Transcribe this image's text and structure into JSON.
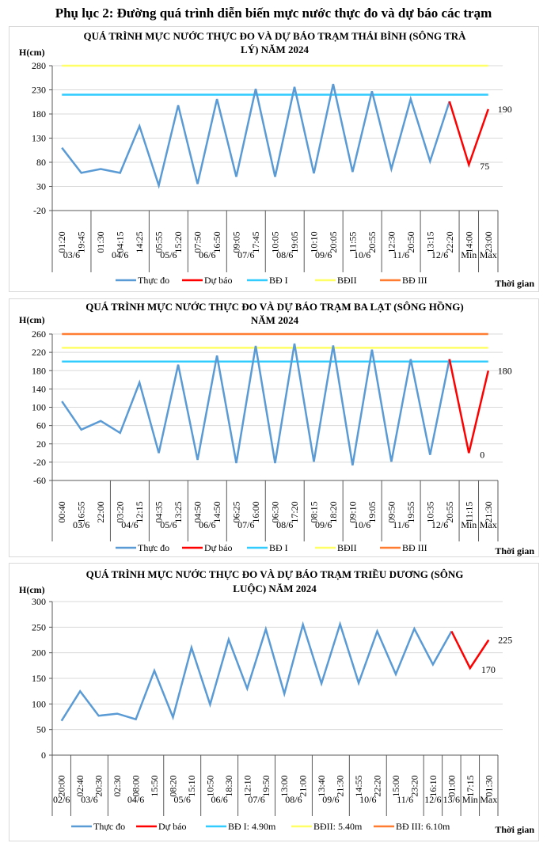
{
  "page_title": "Phụ lục 2: Đường quá trình diễn biến mực nước thực đo và dự báo các trạm",
  "colors": {
    "observed": "#5b9bd5",
    "forecast": "#ff0000",
    "bd1": "#33ccff",
    "bd2": "#ffff66",
    "bd3": "#ff7c30",
    "grid": "#d9d9d9",
    "axis": "#595959"
  },
  "chart_data": [
    {
      "type": "line",
      "title_lines": [
        "QUÁ TRÌNH MỰC NƯỚC THỰC ĐO VÀ DỰ BÁO TRẠM THÁI BÌNH (SÔNG TRÀ",
        "LÝ) NĂM 2024"
      ],
      "ylabel": "H(cm)",
      "xlabel": "Thời gian",
      "ylim": [
        -20,
        280
      ],
      "yticks": [
        -20,
        30,
        80,
        130,
        180,
        230,
        280
      ],
      "grid": true,
      "x": [
        "01:20",
        "19:45",
        "01:30",
        "04:15",
        "14:25",
        "05:55",
        "15:20",
        "07:50",
        "16:50",
        "09:05",
        "17:45",
        "10:05",
        "19:05",
        "10:10",
        "20:05",
        "11:55",
        "20:55",
        "12:30",
        "20:50",
        "13:15",
        "22:20",
        "14:00",
        "23:00"
      ],
      "groups": [
        {
          "label": "03/6",
          "count": 2
        },
        {
          "label": "04/6",
          "count": 3
        },
        {
          "label": "05/6",
          "count": 2
        },
        {
          "label": "06/6",
          "count": 2
        },
        {
          "label": "07/6",
          "count": 2
        },
        {
          "label": "08/6",
          "count": 2
        },
        {
          "label": "09/6",
          "count": 2
        },
        {
          "label": "10/6",
          "count": 2
        },
        {
          "label": "11/6",
          "count": 2
        },
        {
          "label": "12/6",
          "count": 2
        },
        {
          "label": "Min",
          "count": 1
        },
        {
          "label": "Max",
          "count": 1
        }
      ],
      "series": [
        {
          "name": "Thực đo",
          "color_key": "observed",
          "start_index": 0,
          "values": [
            110,
            58,
            66,
            58,
            155,
            32,
            198,
            35,
            211,
            50,
            232,
            50,
            236,
            57,
            242,
            60,
            227,
            66,
            211,
            82,
            206
          ]
        },
        {
          "name": "Dự báo",
          "color_key": "forecast",
          "start_index": 20,
          "values": [
            206,
            75,
            190
          ]
        },
        {
          "name": "BĐ I",
          "color_key": "bd1",
          "constant": 220
        },
        {
          "name": "BĐII",
          "color_key": "bd2",
          "constant": 280
        },
        {
          "name": "BĐ III",
          "color_key": "bd3",
          "constant": null
        }
      ],
      "data_labels": [
        {
          "index": 21,
          "value": 75,
          "text": "75"
        },
        {
          "index": 22,
          "value": 190,
          "text": "190"
        }
      ],
      "legend": [
        "Thực đo",
        "Dự báo",
        "BĐ I",
        "BĐII",
        "BĐ III"
      ],
      "legend_position": "bottom"
    },
    {
      "type": "line",
      "title_lines": [
        "QUÁ TRÌNH MỰC NƯỚC THỰC ĐO VÀ DỰ BÁO TRẠM BA LẠT (SÔNG HỒNG)",
        "NĂM 2024"
      ],
      "ylabel": "H(cm)",
      "xlabel": "Thời gian",
      "ylim": [
        -60,
        260
      ],
      "yticks": [
        -60,
        -20,
        20,
        60,
        100,
        140,
        180,
        220,
        260
      ],
      "grid": true,
      "x": [
        "00:40",
        "16:55",
        "22:00",
        "03:20",
        "12:15",
        "04:35",
        "13:25",
        "04:50",
        "14:50",
        "06:25",
        "16:00",
        "06:30",
        "17:20",
        "08:15",
        "18:20",
        "09:10",
        "19:05",
        "09:50",
        "19:55",
        "10:35",
        "20:55",
        "11:15",
        "21:30"
      ],
      "groups": [
        {
          "label": "03/6",
          "count": 3
        },
        {
          "label": "04/6",
          "count": 2
        },
        {
          "label": "05/6",
          "count": 2
        },
        {
          "label": "06/6",
          "count": 2
        },
        {
          "label": "07/6",
          "count": 2
        },
        {
          "label": "08/6",
          "count": 2
        },
        {
          "label": "09/6",
          "count": 2
        },
        {
          "label": "10/6",
          "count": 2
        },
        {
          "label": "11/6",
          "count": 2
        },
        {
          "label": "12/6",
          "count": 2
        },
        {
          "label": "Min",
          "count": 1
        },
        {
          "label": "Max",
          "count": 1
        }
      ],
      "series": [
        {
          "name": "Thực đo",
          "color_key": "observed",
          "start_index": 0,
          "values": [
            113,
            51,
            70,
            44,
            154,
            0,
            193,
            -15,
            213,
            -22,
            234,
            -22,
            239,
            -19,
            235,
            -27,
            226,
            -19,
            205,
            -4,
            205
          ]
        },
        {
          "name": "Dự báo",
          "color_key": "forecast",
          "start_index": 20,
          "values": [
            205,
            0,
            180
          ]
        },
        {
          "name": "BĐ I",
          "color_key": "bd1",
          "constant": 200
        },
        {
          "name": "BĐII",
          "color_key": "bd2",
          "constant": 230
        },
        {
          "name": "BĐ III",
          "color_key": "bd3",
          "constant": 260
        }
      ],
      "data_labels": [
        {
          "index": 21,
          "value": 0,
          "text": "0"
        },
        {
          "index": 22,
          "value": 180,
          "text": "180"
        }
      ],
      "legend": [
        "Thực đo",
        "Dự báo",
        "BĐ I",
        "BĐII",
        "BĐ III"
      ],
      "legend_position": "bottom"
    },
    {
      "type": "line",
      "title_lines": [
        "QUÁ TRÌNH MỰC NƯỚC THỰC ĐO VÀ DỰ BÁO TRẠM TRIỀU DƯƠNG (SÔNG",
        "LUỘC) NĂM 2024"
      ],
      "ylabel": "H(cm)",
      "xlabel": "Thời gian",
      "ylim": [
        0,
        300
      ],
      "yticks": [
        0,
        50,
        100,
        150,
        200,
        250,
        300
      ],
      "grid": true,
      "x": [
        "20:00",
        "02:40",
        "20:30",
        "02:30",
        "08:00",
        "15:50",
        "08:20",
        "15:10",
        "10:50",
        "18:30",
        "12:10",
        "19:50",
        "13:00",
        "21:00",
        "13:40",
        "21:30",
        "14:55",
        "22:20",
        "15:00",
        "23:20",
        "16:10",
        "01:00",
        "17:15",
        "01:30"
      ],
      "groups": [
        {
          "label": "02/6",
          "count": 1
        },
        {
          "label": "03/6",
          "count": 2
        },
        {
          "label": "04/6",
          "count": 3
        },
        {
          "label": "05/6",
          "count": 2
        },
        {
          "label": "06/6",
          "count": 2
        },
        {
          "label": "07/6",
          "count": 2
        },
        {
          "label": "08/6",
          "count": 2
        },
        {
          "label": "09/6",
          "count": 2
        },
        {
          "label": "10/6",
          "count": 2
        },
        {
          "label": "11/6",
          "count": 2
        },
        {
          "label": "12/6",
          "count": 1
        },
        {
          "label": "13/6",
          "count": 1
        },
        {
          "label": "Min",
          "count": 1
        },
        {
          "label": "Max",
          "count": 1
        }
      ],
      "series": [
        {
          "name": "Thực đo",
          "color_key": "observed",
          "start_index": 0,
          "values": [
            67,
            125,
            77,
            81,
            70,
            165,
            74,
            210,
            99,
            226,
            130,
            246,
            120,
            255,
            140,
            256,
            141,
            242,
            158,
            247,
            177,
            242
          ]
        },
        {
          "name": "Dự báo",
          "color_key": "forecast",
          "start_index": 21,
          "values": [
            242,
            170,
            225
          ]
        },
        {
          "name": "BĐ I: 4.90m",
          "color_key": "bd1",
          "constant": null
        },
        {
          "name": "BĐII: 5.40m",
          "color_key": "bd2",
          "constant": null
        },
        {
          "name": "BĐ III: 6.10m",
          "color_key": "bd3",
          "constant": null
        }
      ],
      "data_labels": [
        {
          "index": 22,
          "value": 170,
          "text": "170"
        },
        {
          "index": 23,
          "value": 225,
          "text": "225"
        }
      ],
      "legend": [
        "Thực đo",
        "Dự báo",
        "BĐ I: 4.90m",
        "BĐII: 5.40m",
        "BĐ III: 6.10m"
      ],
      "legend_position": "bottom"
    }
  ]
}
